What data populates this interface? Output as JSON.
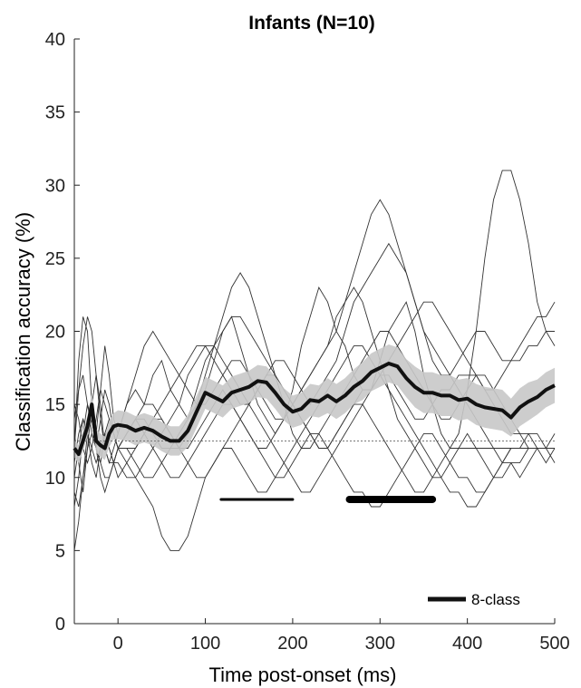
{
  "chart_data": {
    "type": "line",
    "title": "Infants (N=10)",
    "xlabel": "Time post-onset (ms)",
    "ylabel": "Classification accuracy (%)",
    "xlim": [
      -50,
      500
    ],
    "ylim": [
      0,
      40
    ],
    "xticks": [
      0,
      100,
      200,
      300,
      400,
      500
    ],
    "yticks": [
      0,
      5,
      10,
      15,
      20,
      25,
      30,
      35,
      40
    ],
    "chance_level": 12.5,
    "grid": false,
    "legend": {
      "position": "bottom-right",
      "entries": [
        "8-class"
      ]
    },
    "mean": {
      "x": [
        -50,
        -45,
        -40,
        -35,
        -30,
        -25,
        -20,
        -15,
        -10,
        -5,
        0,
        10,
        20,
        30,
        40,
        50,
        60,
        70,
        80,
        90,
        100,
        110,
        120,
        130,
        140,
        150,
        160,
        170,
        180,
        190,
        200,
        210,
        220,
        230,
        240,
        250,
        260,
        270,
        280,
        290,
        300,
        310,
        320,
        330,
        340,
        350,
        360,
        370,
        380,
        390,
        400,
        410,
        420,
        430,
        440,
        450,
        460,
        470,
        480,
        490,
        500
      ],
      "y": [
        12.0,
        11.6,
        12.5,
        13.5,
        15.0,
        12.5,
        12.2,
        12.0,
        13.0,
        13.5,
        13.6,
        13.5,
        13.2,
        13.4,
        13.2,
        12.8,
        12.5,
        12.5,
        13.2,
        14.5,
        15.8,
        15.5,
        15.2,
        15.8,
        16.0,
        16.2,
        16.6,
        16.5,
        15.8,
        15.0,
        14.5,
        14.7,
        15.3,
        15.2,
        15.6,
        15.2,
        15.6,
        16.2,
        16.6,
        17.2,
        17.5,
        17.8,
        17.6,
        16.8,
        16.2,
        15.8,
        15.8,
        15.6,
        15.6,
        15.3,
        15.4,
        15.0,
        14.8,
        14.7,
        14.6,
        14.1,
        14.8,
        15.2,
        15.5,
        16.0,
        16.3
      ]
    },
    "band_halfwidth": [
      0.6,
      0.6,
      0.7,
      0.7,
      0.8,
      0.8,
      0.8,
      0.8,
      0.9,
      0.9,
      1.0,
      1.0,
      1.0,
      1.0,
      1.0,
      1.0,
      1.0,
      1.0,
      1.1,
      1.1,
      1.1,
      1.1,
      1.1,
      1.1,
      1.1,
      1.1,
      1.1,
      1.1,
      1.1,
      1.1,
      1.1,
      1.1,
      1.1,
      1.1,
      1.2,
      1.2,
      1.2,
      1.2,
      1.3,
      1.3,
      1.3,
      1.3,
      1.3,
      1.3,
      1.4,
      1.4,
      1.4,
      1.4,
      1.4,
      1.4,
      1.4,
      1.4,
      1.4,
      1.4,
      1.4,
      1.3,
      1.3,
      1.3,
      1.2,
      1.2,
      1.2
    ],
    "subjects": [
      {
        "y": [
          12,
          18,
          21,
          20,
          15,
          13,
          16,
          19,
          17,
          14,
          13,
          15,
          16,
          15,
          17,
          18,
          16,
          15,
          14,
          15,
          16,
          18,
          20,
          21,
          19,
          17,
          15,
          14,
          13,
          14,
          16,
          19,
          21,
          23,
          22,
          20,
          19,
          17,
          16,
          16,
          18,
          20,
          21,
          22,
          20,
          17,
          15,
          13,
          12,
          12,
          12,
          12,
          12,
          12,
          12,
          12,
          12,
          12,
          12,
          12,
          12
        ]
      },
      {
        "y": [
          10,
          12,
          14,
          13,
          11,
          10,
          12,
          13,
          12,
          11,
          10,
          11,
          12,
          13,
          14,
          15,
          16,
          17,
          18,
          19,
          19,
          18,
          17,
          16,
          15,
          15,
          16,
          17,
          18,
          18,
          17,
          16,
          15,
          16,
          17,
          18,
          20,
          22,
          23,
          24,
          25,
          26,
          25,
          24,
          22,
          20,
          19,
          18,
          17,
          16,
          15,
          14,
          13,
          12,
          11,
          11,
          10,
          11,
          12,
          12,
          13
        ]
      },
      {
        "y": [
          8,
          10,
          13,
          15,
          14,
          12,
          11,
          13,
          14,
          13,
          12,
          13,
          14,
          15,
          15,
          14,
          13,
          12,
          12,
          13,
          14,
          15,
          16,
          15,
          14,
          13,
          12,
          12,
          13,
          14,
          15,
          16,
          17,
          18,
          19,
          20,
          22,
          24,
          26,
          28,
          29,
          28,
          26,
          24,
          22,
          20,
          18,
          17,
          17,
          18,
          19,
          20,
          20,
          19,
          18,
          18,
          19,
          20,
          21,
          21,
          22
        ]
      },
      {
        "y": [
          14,
          16,
          17,
          15,
          13,
          12,
          14,
          16,
          15,
          13,
          12,
          11,
          10,
          9,
          8,
          6,
          5,
          5,
          6,
          8,
          10,
          11,
          12,
          13,
          14,
          15,
          16,
          17,
          17,
          16,
          15,
          14,
          13,
          12,
          12,
          13,
          14,
          15,
          16,
          16,
          17,
          17,
          16,
          15,
          14,
          14,
          15,
          16,
          16,
          17,
          17,
          17,
          16,
          16,
          17,
          18,
          18,
          19,
          19,
          20,
          20
        ]
      },
      {
        "y": [
          12,
          16,
          19,
          21,
          20,
          17,
          14,
          12,
          11,
          11,
          12,
          13,
          14,
          14,
          13,
          12,
          12,
          13,
          14,
          16,
          18,
          19,
          20,
          21,
          21,
          20,
          19,
          18,
          17,
          16,
          15,
          14,
          13,
          12,
          12,
          13,
          14,
          15,
          15,
          14,
          13,
          12,
          11,
          10,
          9,
          9,
          10,
          11,
          12,
          13,
          16,
          20,
          25,
          29,
          31,
          31,
          29,
          26,
          22,
          20,
          19
        ]
      },
      {
        "y": [
          11,
          13,
          14,
          13,
          12,
          11,
          12,
          13,
          12,
          11,
          11,
          10,
          10,
          11,
          12,
          13,
          14,
          15,
          17,
          18,
          19,
          19,
          18,
          17,
          16,
          15,
          14,
          13,
          12,
          11,
          10,
          9,
          9,
          10,
          11,
          12,
          13,
          14,
          15,
          16,
          17,
          18,
          19,
          20,
          21,
          22,
          22,
          21,
          20,
          19,
          18,
          17,
          16,
          15,
          14,
          13,
          13,
          12,
          12,
          12,
          12
        ]
      },
      {
        "y": [
          13,
          11,
          9,
          12,
          15,
          17,
          15,
          12,
          11,
          12,
          13,
          15,
          17,
          19,
          20,
          19,
          18,
          17,
          16,
          15,
          15,
          16,
          17,
          18,
          18,
          17,
          16,
          15,
          14,
          14,
          15,
          16,
          17,
          18,
          19,
          21,
          22,
          23,
          22,
          20,
          18,
          16,
          14,
          13,
          12,
          11,
          10,
          10,
          11,
          12,
          13,
          12,
          11,
          10,
          11,
          12,
          12,
          13,
          13,
          12,
          12
        ]
      },
      {
        "y": [
          9,
          8,
          10,
          12,
          13,
          12,
          11,
          10,
          10,
          11,
          12,
          12,
          11,
          10,
          10,
          11,
          12,
          12,
          13,
          15,
          17,
          19,
          21,
          23,
          24,
          23,
          21,
          19,
          17,
          15,
          13,
          12,
          12,
          13,
          14,
          15,
          16,
          17,
          18,
          19,
          20,
          20,
          19,
          18,
          17,
          16,
          15,
          14,
          14,
          15,
          16,
          17,
          17,
          16,
          15,
          14,
          13,
          13,
          12,
          12,
          11
        ]
      },
      {
        "y": [
          15,
          14,
          12,
          11,
          12,
          14,
          16,
          15,
          14,
          13,
          12,
          12,
          12,
          13,
          14,
          14,
          13,
          12,
          11,
          10,
          10,
          11,
          12,
          12,
          11,
          10,
          9,
          9,
          10,
          11,
          12,
          13,
          14,
          15,
          16,
          17,
          18,
          19,
          19,
          18,
          17,
          16,
          15,
          14,
          13,
          12,
          11,
          10,
          9,
          9,
          8,
          8,
          9,
          10,
          10,
          11,
          11,
          12,
          12,
          12,
          12
        ]
      },
      {
        "y": [
          5,
          7,
          10,
          13,
          14,
          12,
          10,
          9,
          10,
          11,
          12,
          13,
          14,
          13,
          12,
          11,
          10,
          10,
          11,
          12,
          13,
          14,
          15,
          15,
          14,
          13,
          12,
          11,
          10,
          10,
          11,
          12,
          13,
          13,
          12,
          11,
          10,
          9,
          9,
          8,
          8,
          9,
          10,
          11,
          12,
          13,
          13,
          12,
          11,
          10,
          10,
          9,
          9,
          10,
          11,
          12,
          12,
          12,
          12,
          11,
          12
        ]
      }
    ],
    "significance_bars": [
      {
        "x": [
          118,
          200
        ],
        "y": 8.5,
        "style": "thin"
      },
      {
        "x": [
          265,
          360
        ],
        "y": 8.5,
        "style": "thick"
      }
    ],
    "colors": {
      "mean_line": "#111111",
      "band": "#c8c8c8",
      "subject_lines": "#333333",
      "chance_line": "#777777"
    }
  }
}
